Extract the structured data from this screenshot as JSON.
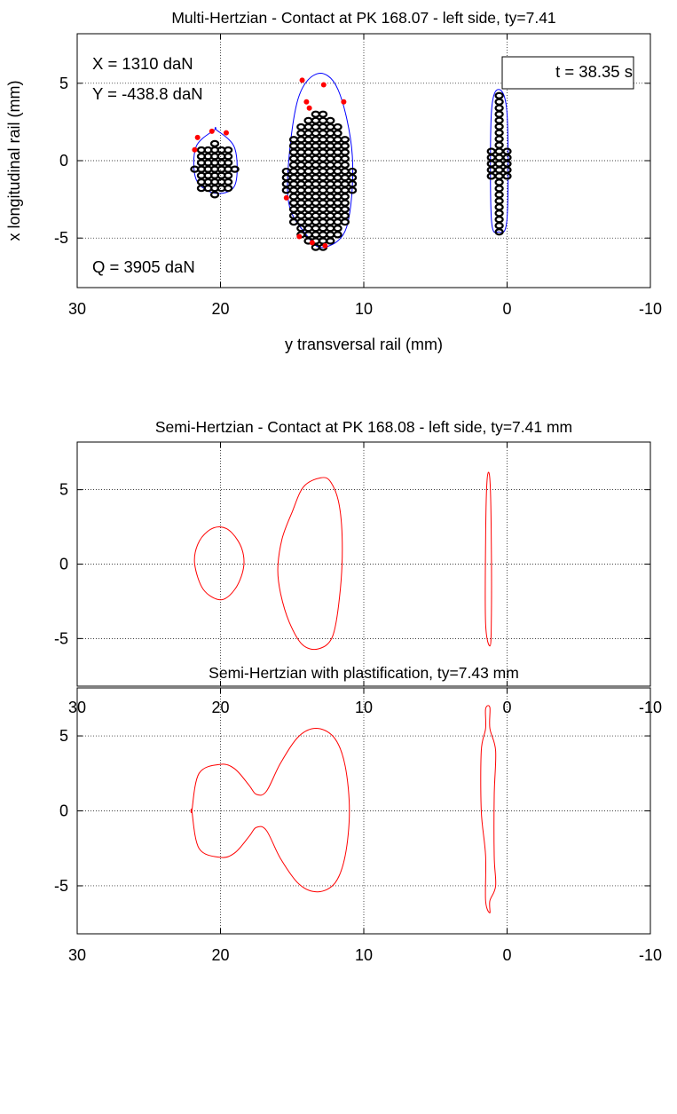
{
  "chart_data": [
    {
      "type": "scatter",
      "title": "Multi-Hertzian - Contact at PK 168.07 - left side, ty=7.41",
      "xlabel": "y transversal rail (mm)",
      "ylabel": "x longitudinal rail  (mm)",
      "xlim": [
        30,
        -10
      ],
      "ylim": [
        -8.2,
        8.2
      ],
      "x_direction": "reversed",
      "grid": true,
      "xticks": [
        30,
        20,
        10,
        0,
        -10
      ],
      "xtick_labels": [
        "30",
        "20",
        "10",
        "0",
        "-10"
      ],
      "yticks": [
        5,
        0,
        -5
      ],
      "ytick_labels": [
        "5",
        "0",
        "-5"
      ],
      "annotations": [
        {
          "text": "X = 1310 daN",
          "position": "top-left"
        },
        {
          "text": "Y = -438.8 daN",
          "position": "top-left"
        },
        {
          "text": "Q = 3905 daN",
          "position": "bottom-left"
        },
        {
          "text": "t = 38.35 s",
          "position": "top-right",
          "boxed": true
        }
      ],
      "series": [
        {
          "role": "contact outline",
          "color": "#0000ff",
          "outlines": [
            {
              "x": [
                20.4,
                20.3,
                19.0,
                19.0,
                20.4,
                21.7,
                21.7
              ],
              "y": [
                2.0,
                2.0,
                0.8,
                -1.6,
                -2.1,
                -1.2,
                0.9
              ]
            },
            {
              "x": [
                13.3,
                11.8,
                10.8,
                11.2,
                12.8,
                14.0,
                15.3,
                14.7
              ],
              "y": [
                5.6,
                4.6,
                0.3,
                -4.3,
                -5.6,
                -4.8,
                -2.3,
                3.6
              ]
            },
            {
              "x": [
                0.6,
                0.0,
                0.0,
                0.6,
                1.1,
                1.1
              ],
              "y": [
                4.6,
                3.0,
                -3.7,
                -4.6,
                -3.7,
                3.0
              ]
            }
          ]
        },
        {
          "role": "contact elements",
          "color": "#000000",
          "groups": [
            {
              "x_range": [
                19.0,
                21.8
              ],
              "y_range": [
                -2.2,
                1.1
              ]
            },
            {
              "x_range": [
                10.8,
                15.4
              ],
              "y_range": [
                -5.6,
                3.0
              ]
            },
            {
              "x_range": [
                0.0,
                1.1
              ],
              "y_range": [
                -4.6,
                4.2
              ]
            }
          ]
        },
        {
          "role": "stress markers",
          "color": "#ff0000",
          "x": [
            21.8,
            21.6,
            20.6,
            19.6,
            14.3,
            14.0,
            13.8,
            12.8,
            11.4,
            15.4,
            14.5,
            13.6,
            12.7
          ],
          "y": [
            0.7,
            1.5,
            1.9,
            1.8,
            5.2,
            3.8,
            3.4,
            4.9,
            3.8,
            -2.4,
            -4.9,
            -5.3,
            -5.5
          ]
        }
      ]
    },
    {
      "type": "line",
      "title": "Semi-Hertzian - Contact at PK 168.08 - left side, ty=7.41 mm",
      "xlabel": "",
      "ylabel": "",
      "xlim": [
        30,
        -10
      ],
      "ylim": [
        -8.2,
        8.2
      ],
      "x_direction": "reversed",
      "grid": true,
      "xticks": [
        30,
        20,
        10,
        0,
        -10
      ],
      "xtick_labels": [
        "30",
        "20",
        "10",
        "0",
        "-10"
      ],
      "yticks": [
        5,
        0,
        -5
      ],
      "ytick_labels": [
        "5",
        "0",
        "-5"
      ],
      "series": [
        {
          "role": "contact patch outline",
          "color": "#ff0000",
          "outlines": [
            {
              "x": [
                20.0,
                19.2,
                18.5,
                18.4,
                19.0,
                20.0,
                21.2,
                21.8,
                21.6,
                20.9
              ],
              "y": [
                2.5,
                2.1,
                1.0,
                -0.3,
                -1.7,
                -2.4,
                -1.7,
                0.0,
                1.3,
                2.2
              ]
            },
            {
              "x": [
                13.0,
                12.3,
                11.7,
                11.5,
                11.7,
                12.2,
                13.2,
                14.3,
                15.2,
                15.8,
                16.0,
                15.7,
                15.0,
                14.2
              ],
              "y": [
                5.8,
                5.5,
                3.9,
                1.0,
                -2.3,
                -4.9,
                -5.7,
                -5.4,
                -3.9,
                -2.0,
                -0.3,
                1.7,
                3.5,
                5.2
              ]
            },
            {
              "x": [
                1.2,
                1.1,
                1.1,
                1.2,
                1.5,
                1.5,
                1.4
              ],
              "y": [
                5.7,
                1.5,
                -4.0,
                -5.5,
                -4.0,
                1.5,
                5.6
              ]
            }
          ]
        }
      ]
    },
    {
      "type": "line",
      "title": "Semi-Hertzian with plastification, ty=7.43 mm",
      "xlabel": "",
      "ylabel": "",
      "xlim": [
        30,
        -10
      ],
      "ylim": [
        -8.2,
        8.2
      ],
      "x_direction": "reversed",
      "grid": true,
      "xticks": [
        30,
        20,
        10,
        0,
        -10
      ],
      "xtick_labels": [
        "30",
        "20",
        "10",
        "0",
        "-10"
      ],
      "yticks": [
        5,
        0,
        -5
      ],
      "ytick_labels": [
        "5",
        "0",
        "-5"
      ],
      "series": [
        {
          "role": "contact patch outline",
          "color": "#ff0000",
          "outlines": [
            {
              "x": [
                22.0,
                21.5,
                20.0,
                19.0,
                18.0,
                17.5,
                16.8,
                15.8,
                14.5,
                13.2,
                12.0,
                11.3,
                11.0,
                11.3,
                12.0,
                13.2,
                14.5,
                15.8,
                16.8,
                17.5,
                18.0,
                19.0,
                20.0,
                21.5,
                22.0
              ],
              "y": [
                0.0,
                2.5,
                3.1,
                2.8,
                1.7,
                1.1,
                1.3,
                3.2,
                5.0,
                5.5,
                4.8,
                3.0,
                0.0,
                -3.0,
                -4.8,
                -5.4,
                -4.9,
                -3.2,
                -1.3,
                -1.1,
                -1.7,
                -2.8,
                -3.1,
                -2.5,
                0.0
              ]
            },
            {
              "x": [
                1.2,
                1.2,
                0.8,
                0.9,
                0.9,
                0.8,
                1.2,
                1.2,
                1.5,
                1.5,
                1.8,
                1.8,
                1.5,
                1.5
              ],
              "y": [
                6.9,
                5.5,
                4.0,
                1.0,
                -3.0,
                -5.0,
                -6.0,
                -6.8,
                -6.0,
                -3.0,
                0.0,
                4.0,
                5.5,
                6.8
              ]
            }
          ]
        }
      ]
    }
  ]
}
